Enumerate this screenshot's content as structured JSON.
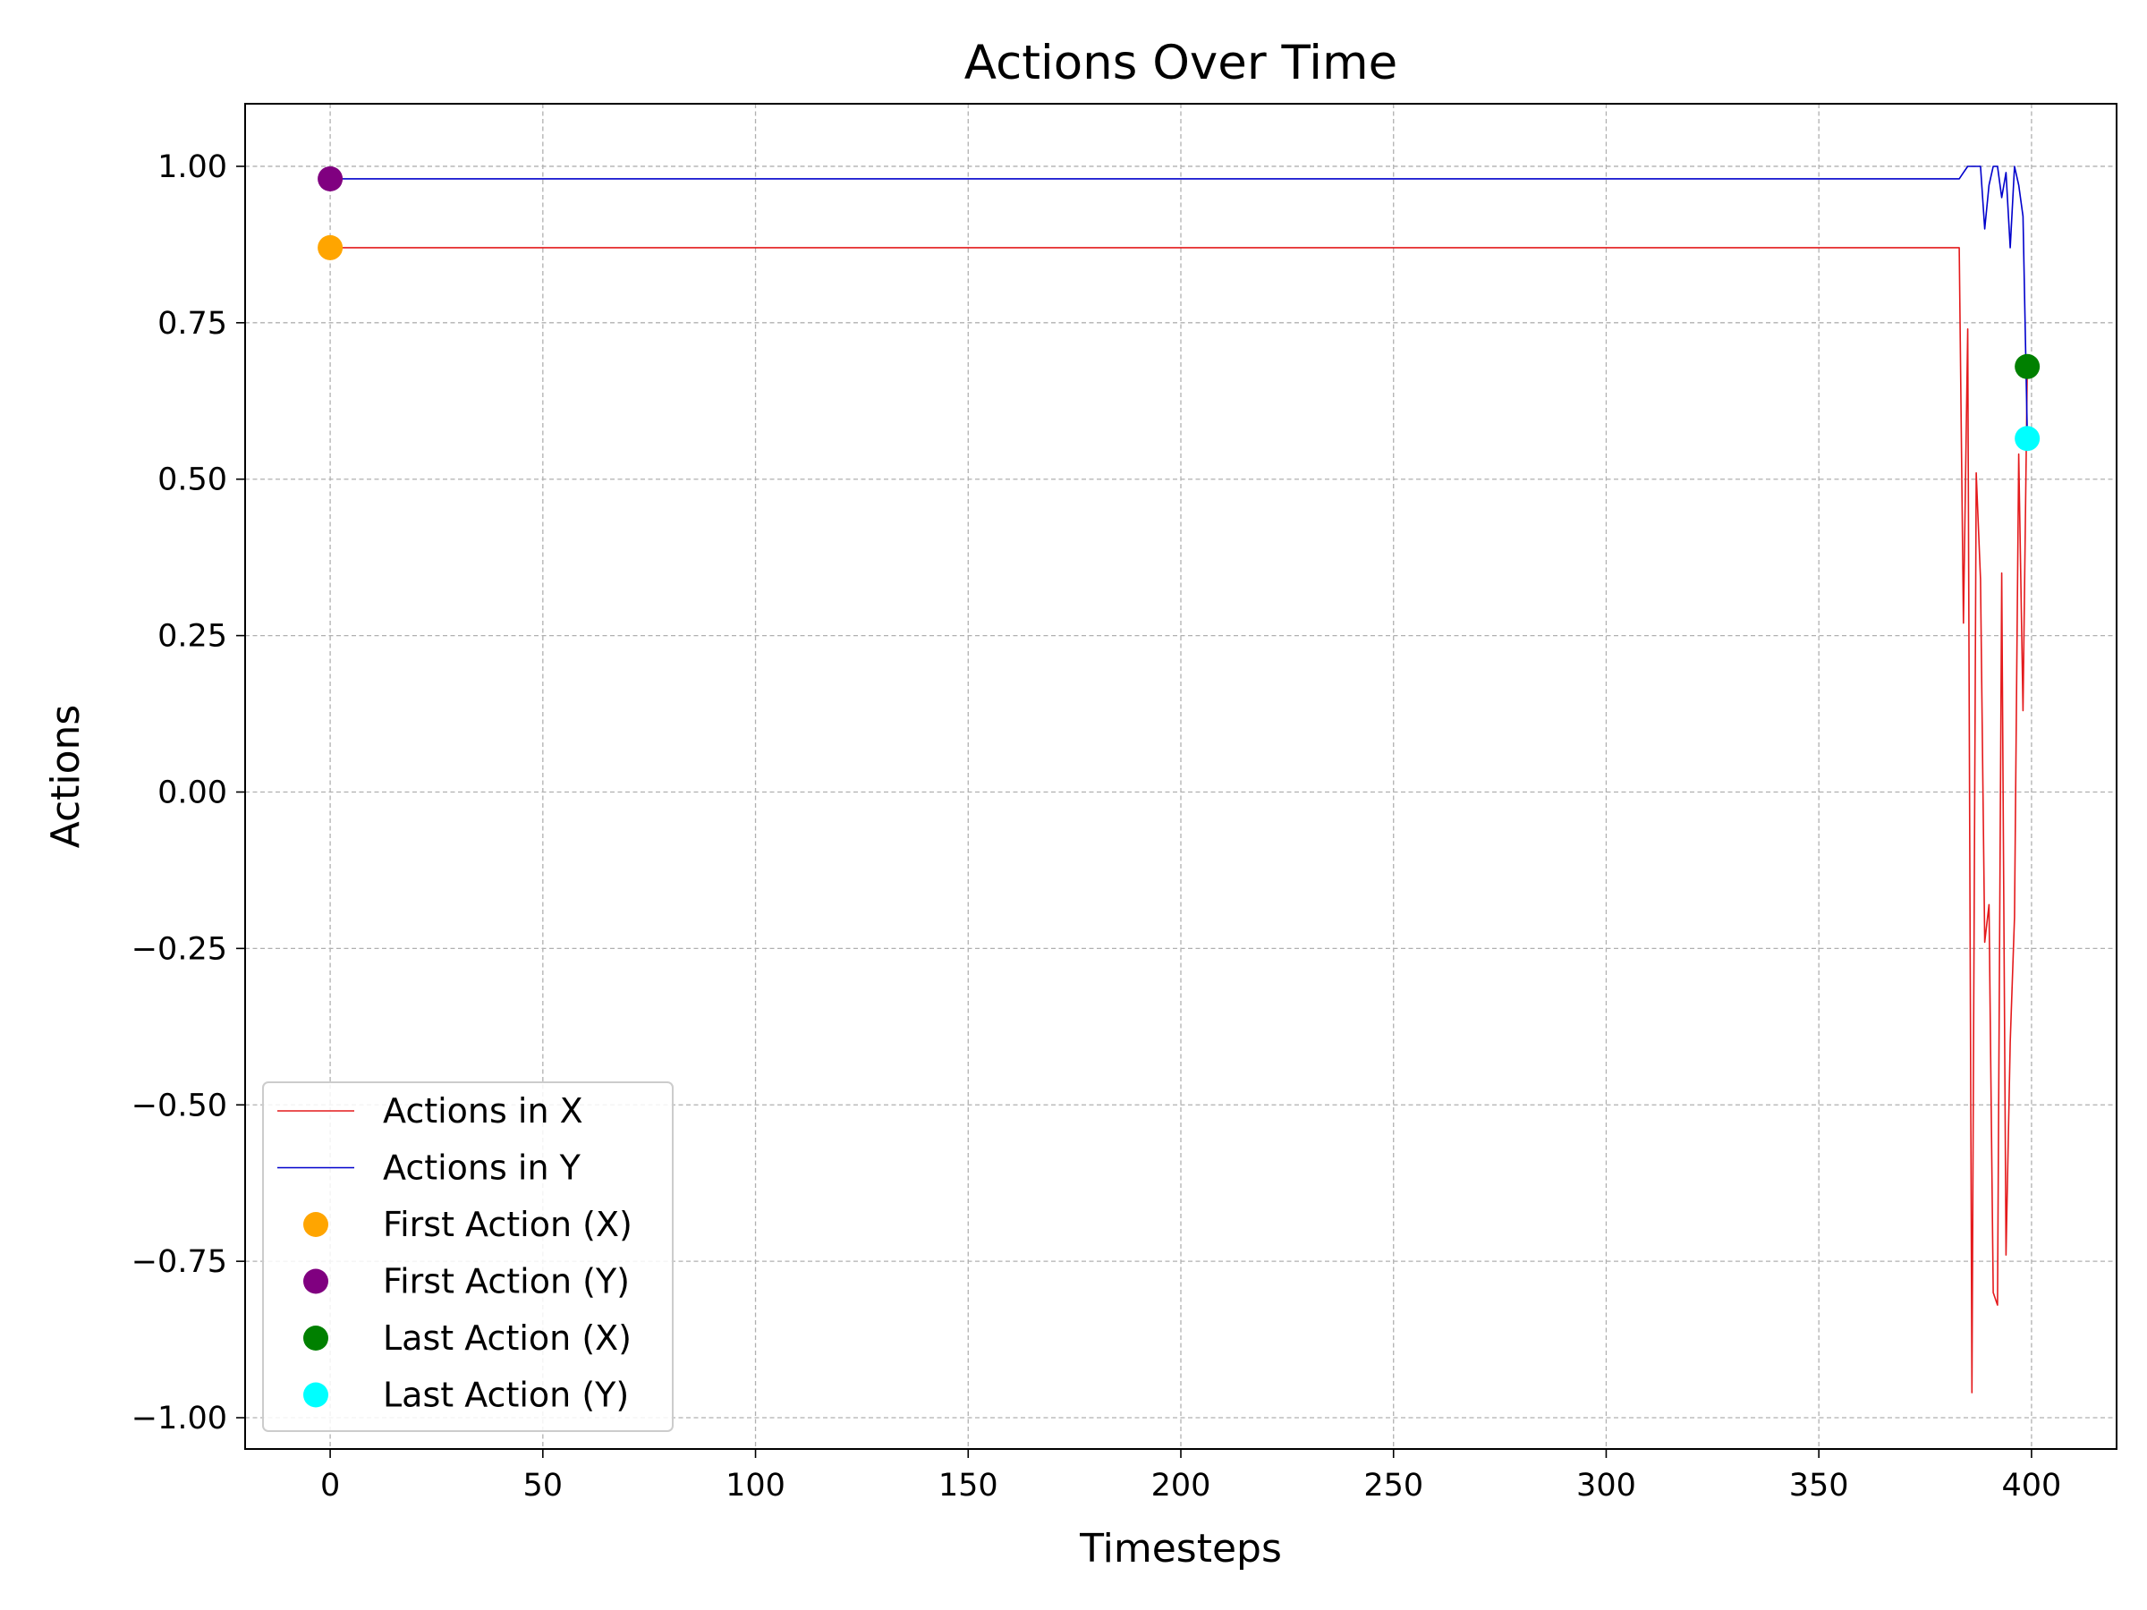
{
  "chart_data": {
    "type": "line",
    "title": "Actions Over Time",
    "xlabel": "Timesteps",
    "ylabel": "Actions",
    "xlim": [
      -20,
      420
    ],
    "ylim": [
      -1.05,
      1.1
    ],
    "xticks": [
      0,
      50,
      100,
      150,
      200,
      250,
      300,
      350,
      400
    ],
    "xtick_labels": [
      "0",
      "50",
      "100",
      "150",
      "200",
      "250",
      "300",
      "350",
      "400"
    ],
    "yticks": [
      1.0,
      0.75,
      0.5,
      0.25,
      0.0,
      -0.25,
      -0.5,
      -0.75,
      -1.0
    ],
    "ytick_labels": [
      "1.00",
      "0.75",
      "0.50",
      "0.25",
      "0.00",
      "−0.25",
      "−0.50",
      "−0.75",
      "−1.00"
    ],
    "grid": true,
    "legend_position": "lower-left",
    "series": [
      {
        "name": "Actions in X",
        "kind": "line",
        "color": "#e41a1c",
        "x": [
          0,
          383,
          384,
          385,
          386,
          387,
          388,
          389,
          390,
          391,
          392,
          393,
          394,
          395,
          396,
          397,
          398,
          399
        ],
        "y": [
          0.87,
          0.87,
          0.27,
          0.74,
          -0.96,
          0.51,
          0.34,
          -0.24,
          -0.18,
          -0.8,
          -0.82,
          0.35,
          -0.74,
          -0.4,
          -0.2,
          0.54,
          0.13,
          0.68
        ]
      },
      {
        "name": "Actions in Y",
        "kind": "line",
        "color": "#0000cc",
        "x": [
          0,
          383,
          384,
          385,
          386,
          387,
          388,
          389,
          390,
          391,
          392,
          393,
          394,
          395,
          396,
          397,
          398,
          399
        ],
        "y": [
          0.98,
          0.98,
          0.99,
          1.0,
          1.0,
          1.0,
          1.0,
          0.9,
          0.97,
          1.0,
          1.0,
          0.95,
          0.99,
          0.87,
          1.0,
          0.97,
          0.92,
          0.57
        ]
      },
      {
        "name": "First Action (X)",
        "kind": "point",
        "color": "#ffa500",
        "x": [
          0
        ],
        "y": [
          0.87
        ]
      },
      {
        "name": "First Action (Y)",
        "kind": "point",
        "color": "#800080",
        "x": [
          0
        ],
        "y": [
          0.98
        ]
      },
      {
        "name": "Last Action (X)",
        "kind": "point",
        "color": "#008000",
        "x": [
          399
        ],
        "y": [
          0.68
        ]
      },
      {
        "name": "Last Action (Y)",
        "kind": "point",
        "color": "#00ffff",
        "x": [
          399
        ],
        "y": [
          0.565
        ]
      }
    ]
  }
}
